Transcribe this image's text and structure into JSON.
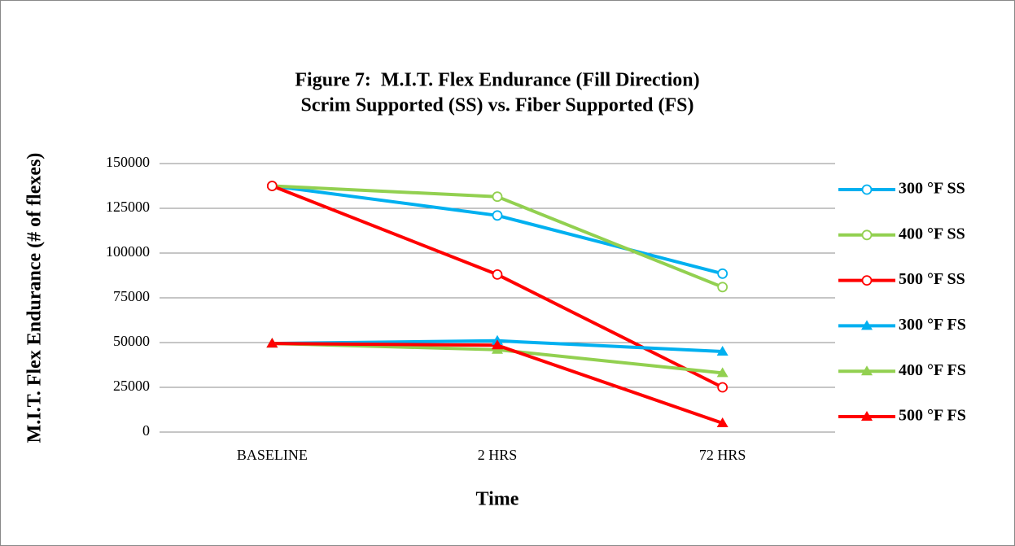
{
  "chart_data": {
    "type": "line",
    "title": [
      "Figure 7:  M.I.T. Flex Endurance (Fill Direction)",
      "Scrim Supported (SS) vs. Fiber Supported (FS)"
    ],
    "x_label": "Time",
    "y_label": "M.I.T. Flex Endurance (# of flexes)",
    "categories": [
      "BASELINE",
      "2 HRS",
      "72 HRS"
    ],
    "series": [
      {
        "name": "300 °F SS",
        "color": "#00b0f0",
        "marker": "circle",
        "values": [
          137500,
          121000,
          88500
        ]
      },
      {
        "name": "400 °F SS",
        "color": "#92d050",
        "marker": "circle",
        "values": [
          137500,
          131500,
          81000
        ]
      },
      {
        "name": "500 °F SS",
        "color": "#ff0000",
        "marker": "circle",
        "values": [
          137500,
          88000,
          25000
        ]
      },
      {
        "name": "300 °F FS",
        "color": "#00b0f0",
        "marker": "triangle",
        "values": [
          49500,
          51000,
          45000
        ]
      },
      {
        "name": "400 °F FS",
        "color": "#92d050",
        "marker": "triangle",
        "values": [
          49500,
          46000,
          33000
        ]
      },
      {
        "name": "500 °F FS",
        "color": "#ff0000",
        "marker": "triangle",
        "values": [
          49500,
          48500,
          5000
        ]
      }
    ],
    "ylim": [
      0,
      150000
    ],
    "yticks": [
      0,
      25000,
      50000,
      75000,
      100000,
      125000,
      150000
    ],
    "grid": true,
    "legend": "right"
  }
}
